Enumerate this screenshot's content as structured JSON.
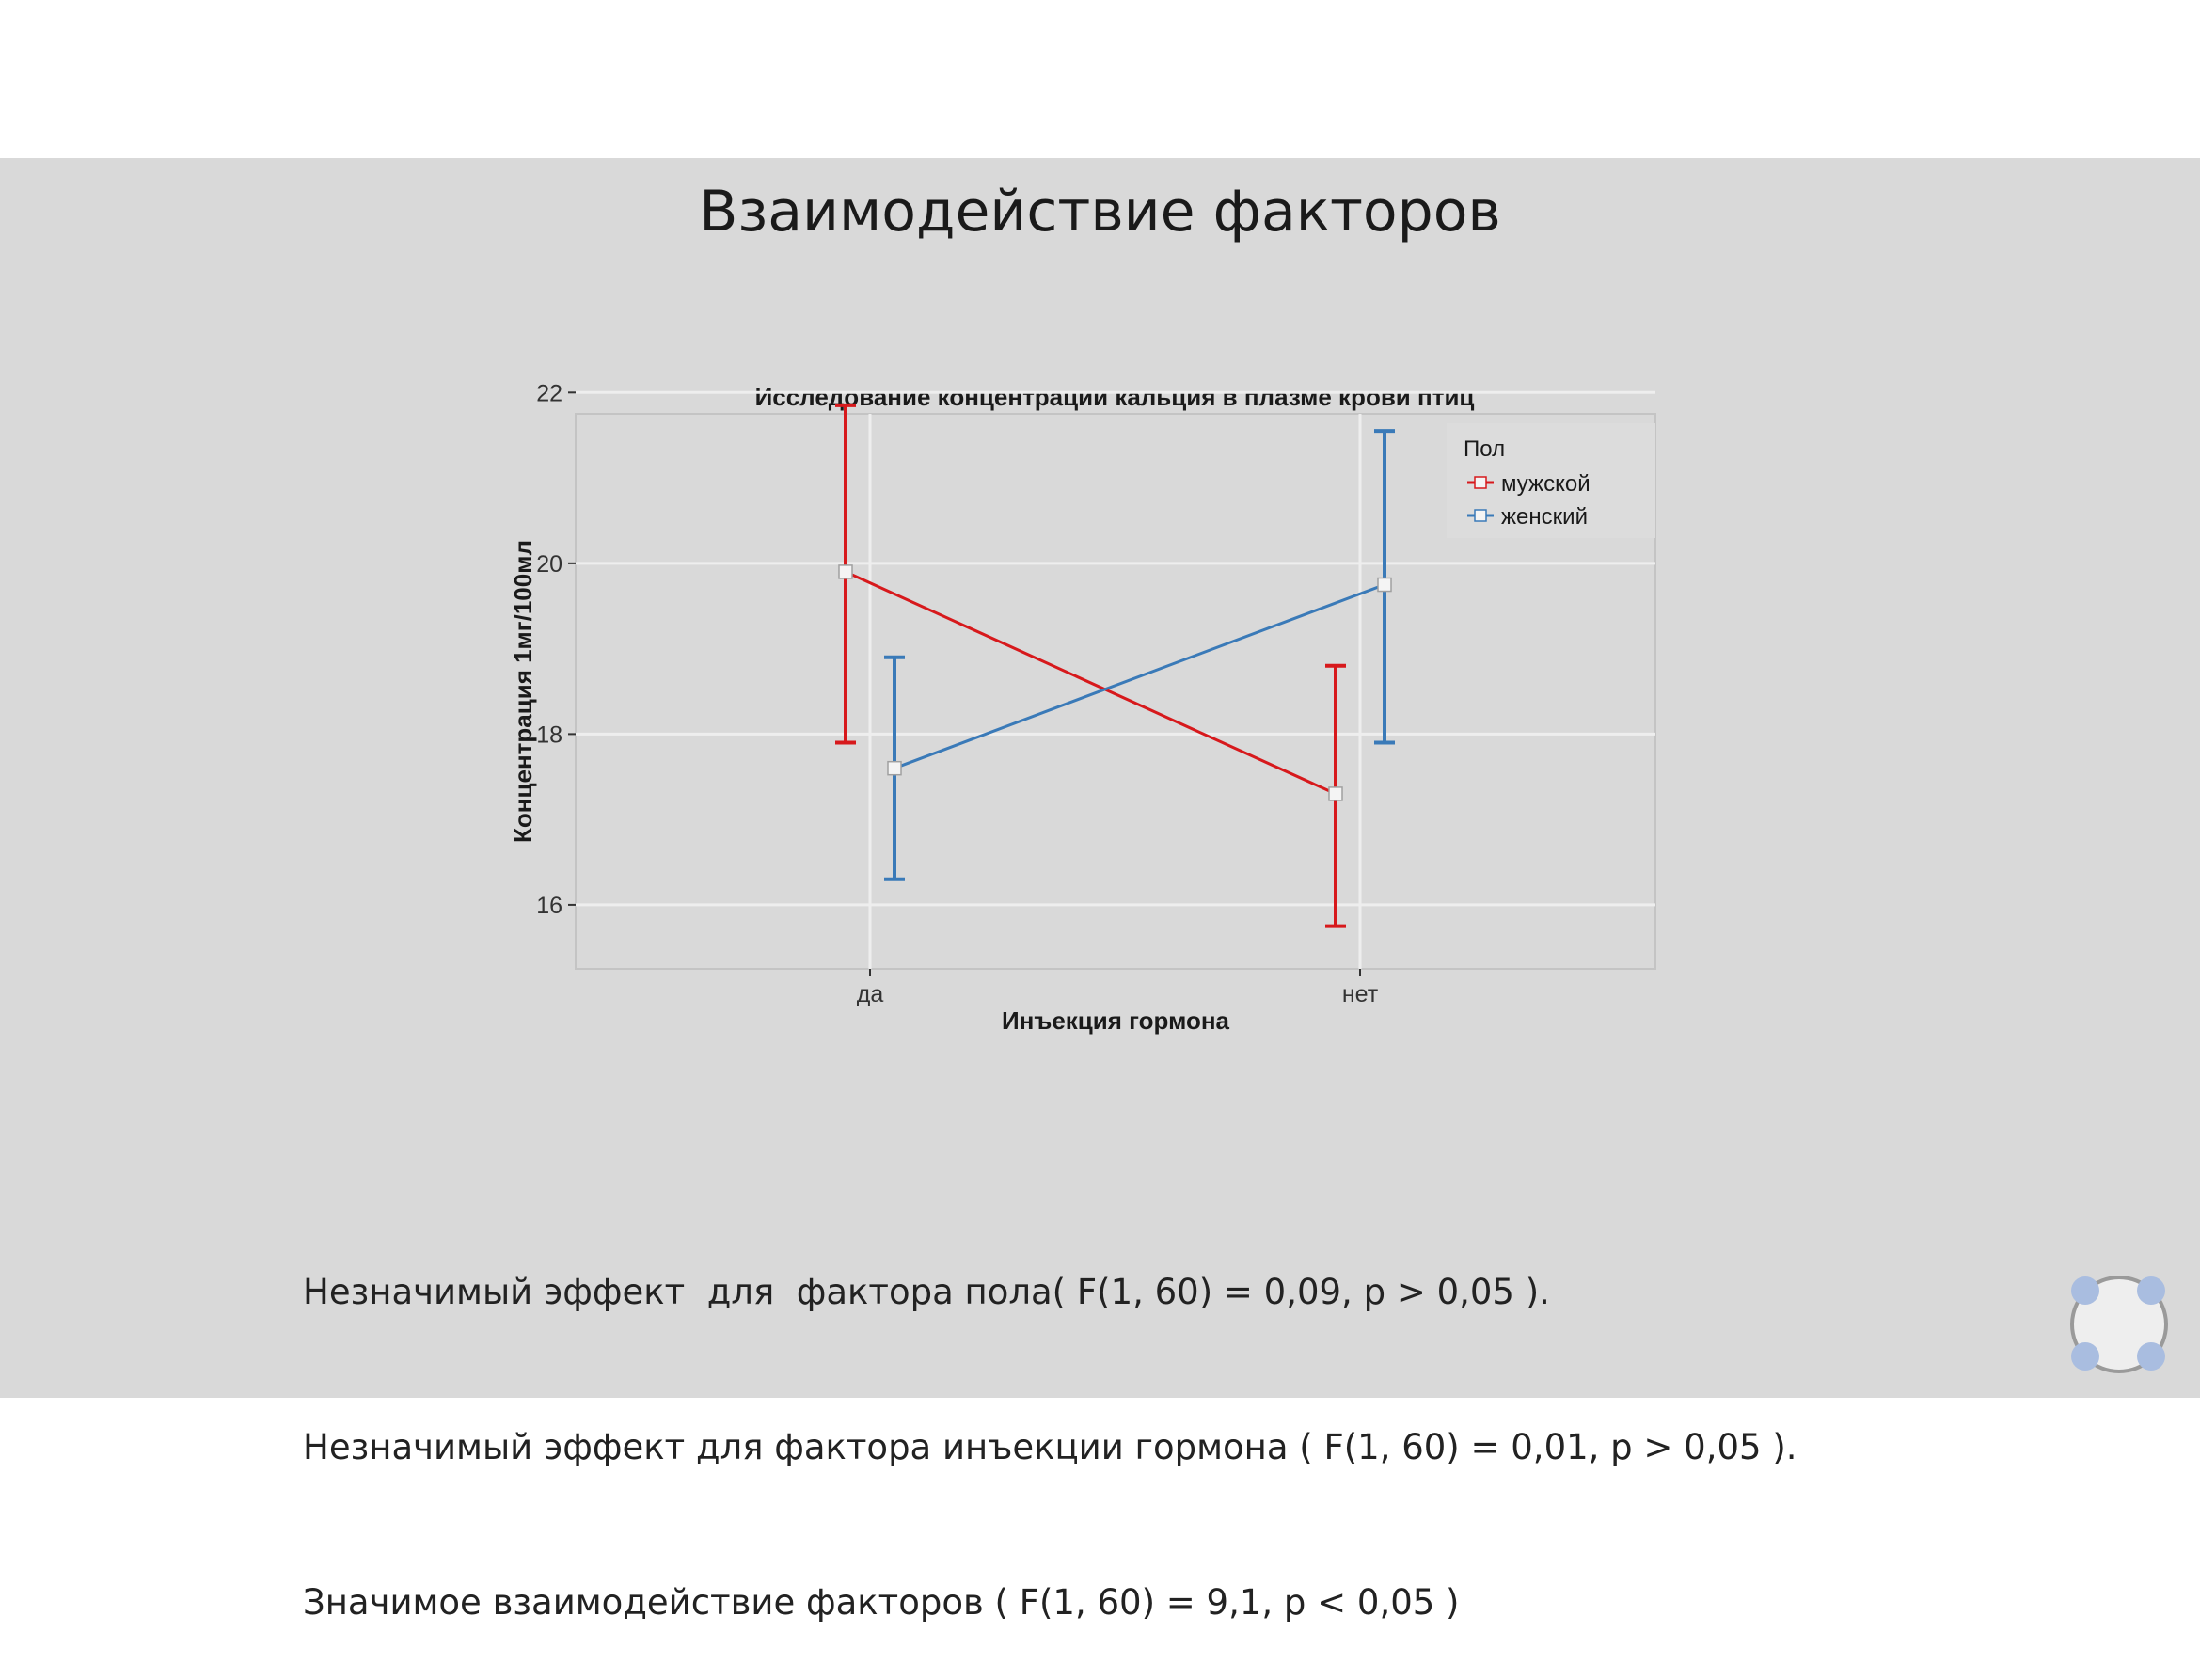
{
  "slide": {
    "title": "Взаимодействие факторов",
    "notes": [
      "Незначимый эффект  для  фактора пола( F(1, 60) = 0,09, p > 0,05 ).",
      "Незначимый эффект для фактора инъекции гормона ( F(1, 60) = 0,01, p > 0,05 ).",
      "Значимое взаимодействие факторов ( F(1, 60) = 9,1, p < 0,05 )"
    ],
    "nav_icon": "navigation-circle-icon"
  },
  "chart_data": {
    "type": "line",
    "title": "Исследование концентрации кальция в плазме крови птиц",
    "xlabel": "Инъекция гормона",
    "ylabel": "Концентрация 1мг/100мл",
    "categories": [
      "да",
      "нет"
    ],
    "ylim": [
      15.25,
      21.75
    ],
    "yticks": [
      16,
      18,
      20,
      22
    ],
    "grid": true,
    "legend": {
      "title": "Пол",
      "position": "top-right"
    },
    "series": [
      {
        "name": "мужской",
        "color": "#d7191c",
        "marker": "square",
        "values": [
          19.9,
          17.3
        ],
        "error_low": [
          17.9,
          15.75
        ],
        "error_high": [
          21.85,
          18.8
        ]
      },
      {
        "name": "женский",
        "color": "#3a7ab8",
        "marker": "square",
        "values": [
          17.6,
          19.75
        ],
        "error_low": [
          16.3,
          17.9
        ],
        "error_high": [
          18.9,
          21.55
        ]
      }
    ]
  }
}
